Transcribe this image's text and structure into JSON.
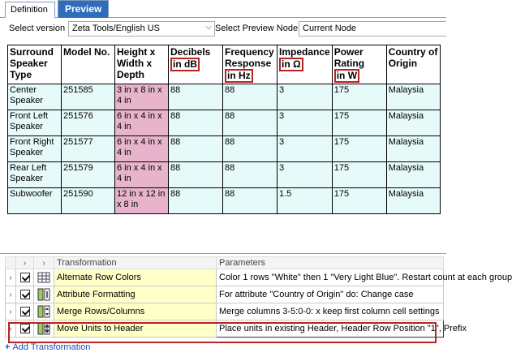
{
  "tabs": [
    {
      "label": "Definition",
      "active": false
    },
    {
      "label": "Preview",
      "active": true
    }
  ],
  "toolbar": {
    "version_label": "Select version",
    "version_value": "Zeta Tools/English US",
    "node_label": "Select Preview Node",
    "node_value": "Current Node"
  },
  "preview_table": {
    "headers": [
      {
        "text": "Surround Speaker Type",
        "unit": ""
      },
      {
        "text": "Model No.",
        "unit": ""
      },
      {
        "text": "Height x Width x Depth",
        "unit": ""
      },
      {
        "text": "Decibels",
        "unit": "in dB"
      },
      {
        "text": "Frequency Response",
        "unit": "in Hz"
      },
      {
        "text": "Impedance",
        "unit": "in Ω"
      },
      {
        "text": "Power Rating",
        "unit": "in W"
      },
      {
        "text": "Country of Origin",
        "unit": ""
      }
    ],
    "rows": [
      [
        "Center Speaker",
        "251585",
        "3 in x 8 in x 4 in",
        "88",
        "88",
        "3",
        "175",
        "Malaysia"
      ],
      [
        "Front Left Speaker",
        "251576",
        "6 in x 4 in x 4 in",
        "88",
        "88",
        "3",
        "175",
        "Malaysia"
      ],
      [
        "Front Right Speaker",
        "251577",
        "6 in x 4 in x 4 in",
        "88",
        "88",
        "3",
        "175",
        "Malaysia"
      ],
      [
        "Rear Left Speaker",
        "251579",
        "6 in x 4 in x 4 in",
        "88",
        "88",
        "3",
        "175",
        "Malaysia"
      ],
      [
        "Subwoofer",
        "251590",
        "12 in x 12 in x 8 in",
        "88",
        "88",
        "1.5",
        "175",
        "Malaysia"
      ]
    ]
  },
  "transformations": {
    "col_transformation": "Transformation",
    "col_parameters": "Parameters",
    "items": [
      {
        "name": "Alternate Row Colors",
        "params": "Color 1 rows \"White\" then 1 \"Very Light Blue\".  Restart count at each group",
        "icon": "grid-icon",
        "checked": true
      },
      {
        "name": "Attribute Formatting",
        "params": "For attribute \"Country of Origin\" do: Change case",
        "icon": "column-format-icon",
        "checked": true
      },
      {
        "name": "Merge Rows/Columns",
        "params": "Merge columns 3-5:0-0: x  keep first column cell settings",
        "icon": "merge-icon",
        "checked": true
      },
      {
        "name": "Move Units to Header",
        "params": "Place units in existing Header, Header Row Position \"1\", Prefix",
        "icon": "move-units-icon",
        "checked": true
      }
    ],
    "add_label": "Add Transformation"
  },
  "colors": {
    "accent": "#2e6dbc",
    "highlight": "#b22222",
    "row_bg": "#e6fafa",
    "dim_bg": "#e8b4cc",
    "name_bg": "#ffffc8"
  }
}
